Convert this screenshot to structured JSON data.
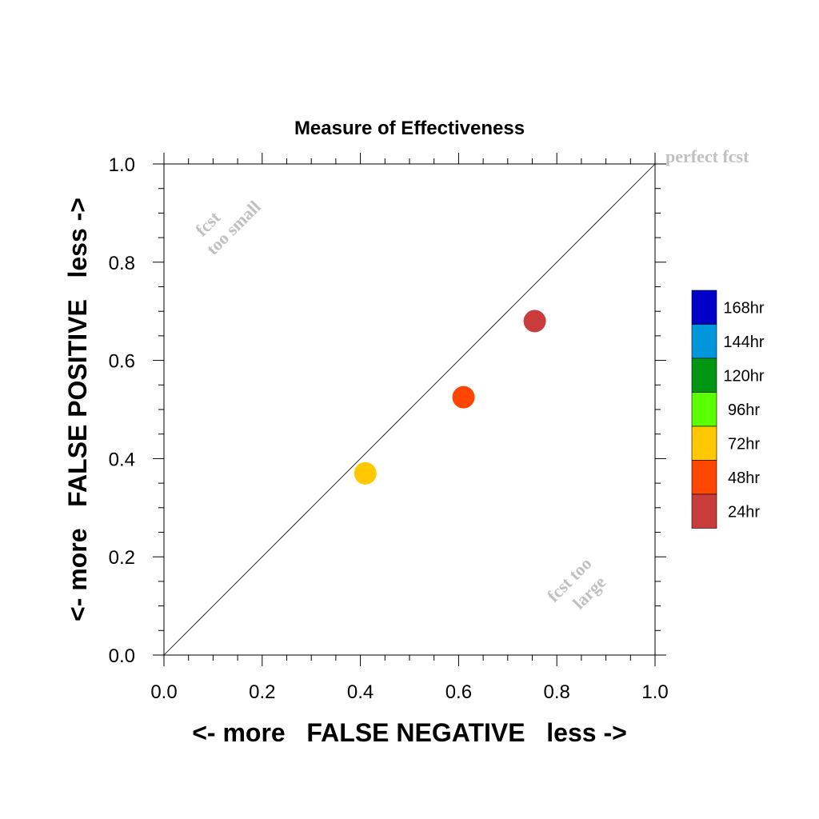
{
  "chart_data": {
    "type": "scatter",
    "title": "Measure of Effectiveness",
    "xlabel": "<- more   FALSE NEGATIVE   less ->",
    "ylabel": "<- more   FALSE POSITIVE   less ->",
    "xlim": [
      0.0,
      1.0
    ],
    "ylim": [
      0.0,
      1.0
    ],
    "x_ticks": [
      "0.0",
      "0.2",
      "0.4",
      "0.6",
      "0.8",
      "1.0"
    ],
    "y_ticks": [
      "0.0",
      "0.2",
      "0.4",
      "0.6",
      "0.8",
      "1.0"
    ],
    "reference_line": "diagonal y = x",
    "annotations": {
      "perfect": "perfect fcst",
      "too_small_1": "fcst",
      "too_small_2": "too small",
      "too_large_1": "fcst too",
      "too_large_2": "large"
    },
    "legend": [
      {
        "label": "168hr",
        "color": "#0000c8"
      },
      {
        "label": "144hr",
        "color": "#0096dc"
      },
      {
        "label": "120hr",
        "color": "#009614"
      },
      {
        "label": "96hr",
        "color": "#5aff00"
      },
      {
        "label": "72hr",
        "color": "#ffc800"
      },
      {
        "label": "48hr",
        "color": "#ff4600"
      },
      {
        "label": "24hr",
        "color": "#c83c3c"
      }
    ],
    "legend_placement": "right",
    "points": [
      {
        "series": "72hr",
        "x": 0.41,
        "y": 0.37,
        "color": "#ffc800"
      },
      {
        "series": "48hr",
        "x": 0.61,
        "y": 0.525,
        "color": "#ff4600"
      },
      {
        "series": "24hr",
        "x": 0.755,
        "y": 0.68,
        "color": "#c83c3c"
      }
    ]
  }
}
